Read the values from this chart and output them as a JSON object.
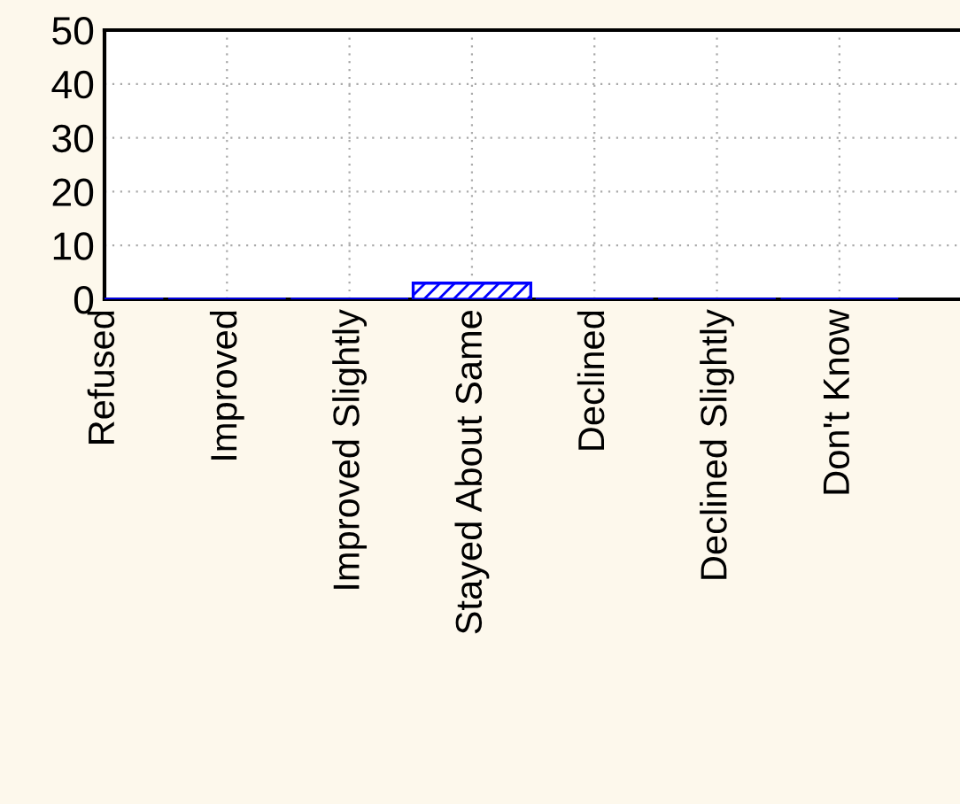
{
  "chart_data": {
    "type": "bar",
    "categories": [
      "Refused",
      "Improved",
      "Improved Slightly",
      "Stayed About Same",
      "Declined",
      "Declined Slightly",
      "Don't Know"
    ],
    "values": [
      0,
      0,
      0,
      3,
      0,
      0,
      0
    ],
    "color": "#0000ff",
    "ylim": [
      0,
      50
    ],
    "yticks": [
      0,
      10,
      20,
      30,
      40,
      50
    ],
    "grid": true
  }
}
